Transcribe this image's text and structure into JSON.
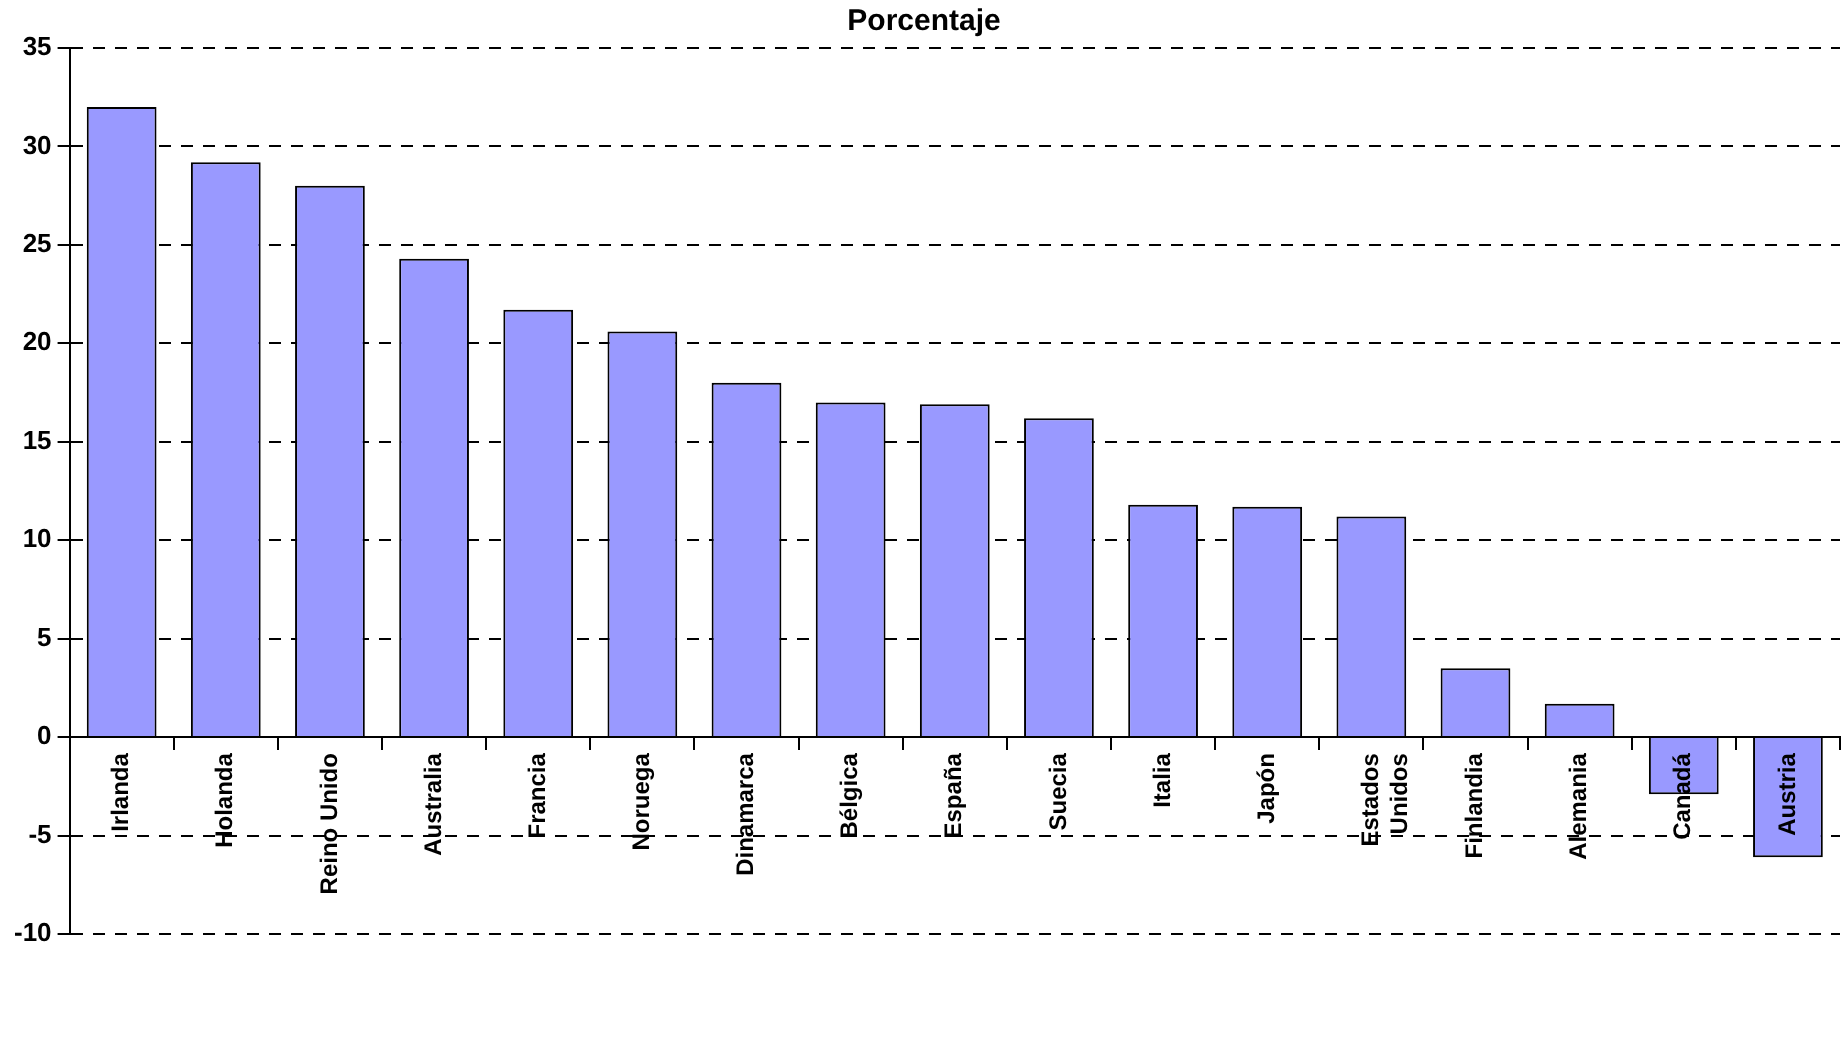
{
  "chart_data": {
    "type": "bar",
    "title": "Porcentaje",
    "categories": [
      "Irlanda",
      "Holanda",
      "Reino Unido",
      "Australia",
      "Francia",
      "Noruega",
      "Dinamarca",
      "Bélgica",
      "España",
      "Suecia",
      "Italia",
      "Japón",
      "Estados Unidos",
      "Finlandia",
      "Alemania",
      "Canadá",
      "Austria"
    ],
    "values": [
      32.0,
      29.2,
      28.0,
      24.3,
      21.7,
      20.6,
      18.0,
      17.0,
      16.9,
      16.2,
      11.8,
      11.7,
      11.2,
      3.5,
      1.7,
      -2.9,
      -6.1
    ],
    "color": "#9999ff",
    "ylim": [
      -10,
      35
    ],
    "yticks": [
      -10,
      -5,
      0,
      5,
      10,
      15,
      20,
      25,
      30,
      35
    ],
    "grid": "y",
    "legend": false
  }
}
